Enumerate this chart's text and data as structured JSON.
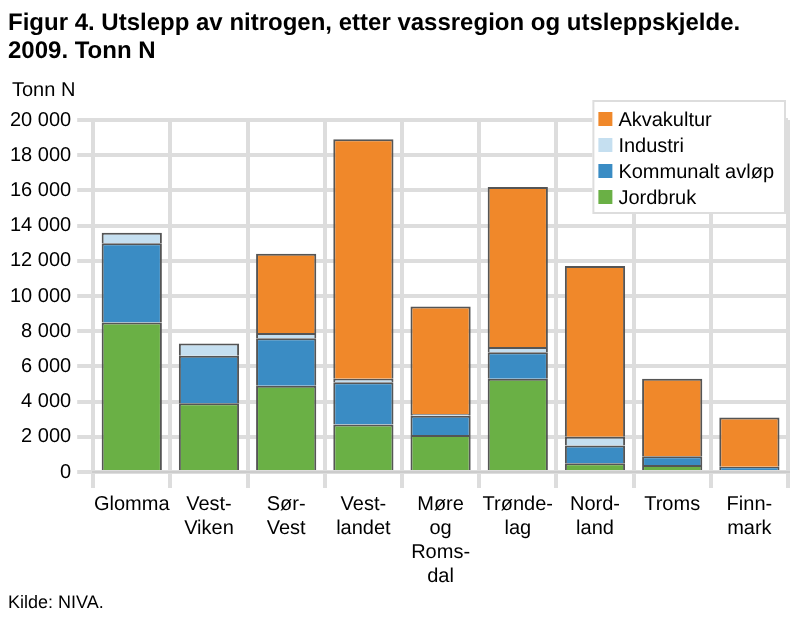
{
  "chart_data": {
    "type": "bar",
    "title": "Figur 4. Utslepp av nitrogen, etter vassregion og utsleppskjelde. 2009. Tonn N",
    "ylabel": "Tonn N",
    "categories": [
      "Glomma",
      "Vest-Viken",
      "Sør-Vest",
      "Vest-landet",
      "Møre og Roms-dal",
      "Trønde-lag",
      "Nord-land",
      "Troms",
      "Finn-mark"
    ],
    "stacked": true,
    "series": [
      {
        "name": "Jordbruk",
        "color": "#6ab045",
        "values": [
          8500,
          3900,
          4900,
          2700,
          2100,
          5300,
          500,
          400,
          null
        ]
      },
      {
        "name": "Kommunalt avløp",
        "color": "#3a8cc4",
        "values": [
          4500,
          2700,
          2700,
          2400,
          1100,
          1500,
          1000,
          500,
          300
        ]
      },
      {
        "name": "Industri",
        "color": "#c5dff0",
        "values": [
          600,
          700,
          300,
          200,
          100,
          300,
          500,
          null,
          null
        ]
      },
      {
        "name": "Akvakultur",
        "color": "#f0882a",
        "values": [
          null,
          null,
          4500,
          13600,
          6100,
          9100,
          9700,
          4400,
          2800
        ]
      }
    ],
    "ylim": [
      0,
      20000
    ],
    "yticks": [
      0,
      2000,
      4000,
      6000,
      8000,
      10000,
      12000,
      14000,
      16000,
      18000,
      20000
    ],
    "grid": true,
    "legend": "top right",
    "annotations": [
      "Kilde: NIVA."
    ]
  }
}
